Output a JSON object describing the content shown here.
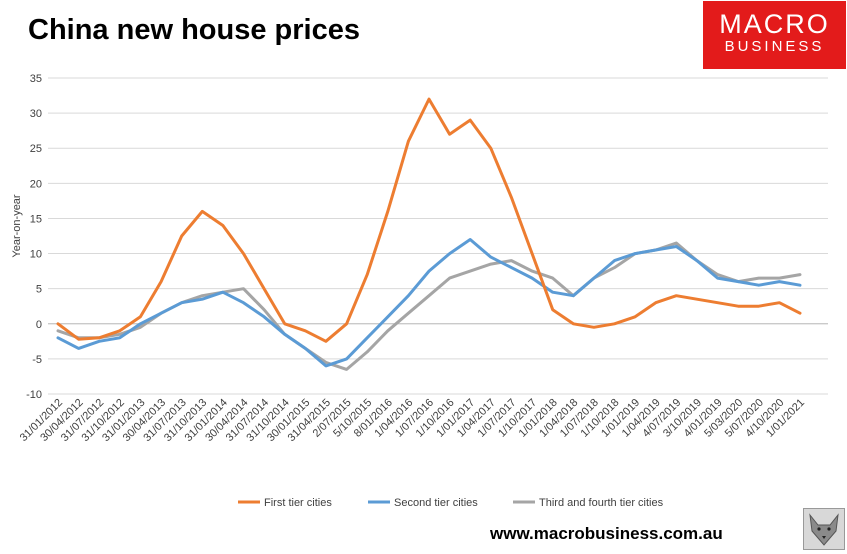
{
  "header": {
    "title": "China new house prices",
    "logo_line1": "MACRO",
    "logo_line2": "BUSINESS"
  },
  "footer": {
    "website": "www.macrobusiness.com.au"
  },
  "colors": {
    "first_tier": "#ed7d31",
    "second_tier": "#5b9bd5",
    "third_tier": "#a5a5a5",
    "logo_bg": "#e31b1b"
  },
  "chart_data": {
    "type": "line",
    "title": "China new house prices",
    "xlabel": "",
    "ylabel": "Year-on-year",
    "ylim": [
      -10,
      35
    ],
    "yticks": [
      -10,
      -5,
      0,
      5,
      10,
      15,
      20,
      25,
      30,
      35
    ],
    "grid": true,
    "legend_position": "bottom",
    "categories": [
      "31/01/2012",
      "30/04/2012",
      "31/07/2012",
      "31/10/2012",
      "31/01/2013",
      "30/04/2013",
      "31/07/2013",
      "31/10/2013",
      "31/01/2014",
      "30/04/2014",
      "31/07/2014",
      "31/10/2014",
      "30/01/2015",
      "31/04/2015",
      "2/07/2015",
      "5/10/2015",
      "8/01/2016",
      "1/04/2016",
      "1/07/2016",
      "1/10/2016",
      "1/01/2017",
      "1/04/2017",
      "1/07/2017",
      "1/10/2017",
      "1/01/2018",
      "1/04/2018",
      "1/07/2018",
      "1/10/2018",
      "1/01/2019",
      "1/04/2019",
      "4/07/2019",
      "3/10/2019",
      "4/01/2019",
      "5/03/2020",
      "5/07/2020",
      "4/10/2020",
      "1/01/2021"
    ],
    "series": [
      {
        "name": "First tier cities",
        "values": [
          0,
          -2.2,
          -2,
          -1,
          1,
          6,
          12.5,
          16,
          14,
          10,
          5,
          0,
          -1,
          -2.5,
          0,
          7,
          16,
          26,
          32,
          27,
          29,
          25,
          18,
          10,
          2,
          0,
          -0.5,
          0,
          1,
          3,
          4,
          3.5,
          3,
          2.5,
          2.5,
          3,
          1.5
        ]
      },
      {
        "name": "Second tier cities",
        "values": [
          -2,
          -3.5,
          -2.5,
          -2,
          0,
          1.5,
          3,
          3.5,
          4.5,
          3,
          1,
          -1.5,
          -3.5,
          -6,
          -5,
          -2,
          1,
          4,
          7.5,
          10,
          12,
          9.5,
          8,
          6.5,
          4.5,
          4,
          6.5,
          9,
          10,
          10.5,
          11,
          9,
          6.5,
          6,
          5.5,
          6,
          5.5
        ]
      },
      {
        "name": "Third and fourth tier cities",
        "values": [
          -1,
          -2,
          -2,
          -1.5,
          -0.5,
          1.5,
          3,
          4,
          4.5,
          5,
          2,
          -1.5,
          -3.5,
          -5.5,
          -6.5,
          -4,
          -1,
          1.5,
          4,
          6.5,
          7.5,
          8.5,
          9,
          7.5,
          6.5,
          4,
          6.5,
          8,
          10,
          10.5,
          11.5,
          9,
          7,
          6,
          6.5,
          6.5,
          7
        ]
      }
    ]
  }
}
